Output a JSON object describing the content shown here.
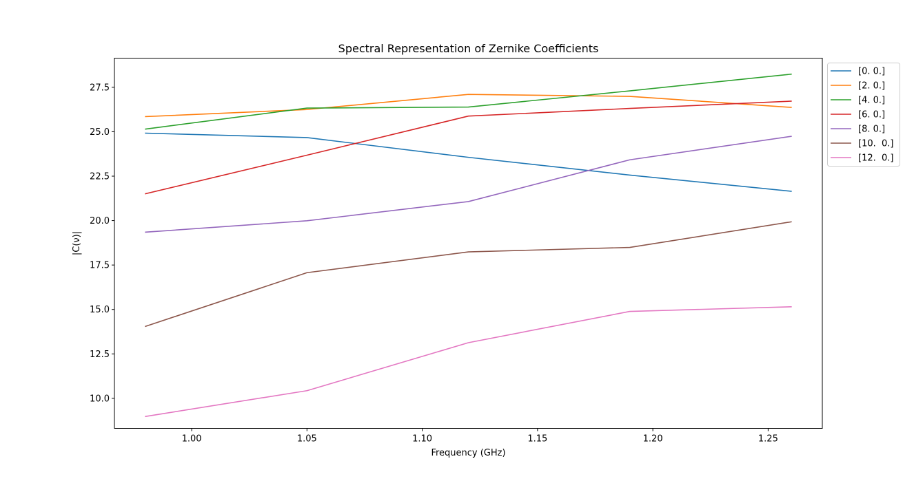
{
  "chart_data": {
    "type": "line",
    "title": "Spectral Representation of Zernike Coefficients",
    "xlabel": "Frequency (GHz)",
    "ylabel": "|C(ν)|",
    "x": [
      0.98,
      1.05,
      1.12,
      1.19,
      1.26
    ],
    "xlim": [
      0.9665,
      1.2735
    ],
    "ylim": [
      8.31,
      29.14
    ],
    "xticks": [
      1.0,
      1.05,
      1.1,
      1.15,
      1.2,
      1.25
    ],
    "xtick_labels": [
      "1.00",
      "1.05",
      "1.10",
      "1.15",
      "1.20",
      "1.25"
    ],
    "yticks": [
      10.0,
      12.5,
      15.0,
      17.5,
      20.0,
      22.5,
      25.0,
      27.5
    ],
    "ytick_labels": [
      "10.0",
      "12.5",
      "15.0",
      "17.5",
      "20.0",
      "22.5",
      "25.0",
      "27.5"
    ],
    "grid": false,
    "legend_position": "outside-top-right",
    "series": [
      {
        "name": "[0. 0.]",
        "color": "#1f77b4",
        "values": [
          24.92,
          24.67,
          23.56,
          22.56,
          21.65
        ]
      },
      {
        "name": "[2. 0.]",
        "color": "#ff7f0e",
        "values": [
          25.85,
          26.25,
          27.1,
          26.99,
          26.37
        ]
      },
      {
        "name": "[4. 0.]",
        "color": "#2ca02c",
        "values": [
          25.15,
          26.33,
          26.39,
          27.3,
          28.24
        ]
      },
      {
        "name": "[6. 0.]",
        "color": "#d62728",
        "values": [
          21.51,
          23.68,
          25.88,
          26.31,
          26.72
        ]
      },
      {
        "name": "[8. 0.]",
        "color": "#9467bd",
        "values": [
          19.35,
          19.99,
          21.07,
          23.42,
          24.74
        ]
      },
      {
        "name": "[10.  0.]",
        "color": "#8c564b",
        "values": [
          14.05,
          17.07,
          18.24,
          18.49,
          19.93
        ]
      },
      {
        "name": "[12.  0.]",
        "color": "#e377c2",
        "values": [
          8.98,
          10.43,
          13.13,
          14.89,
          15.15
        ]
      }
    ]
  }
}
